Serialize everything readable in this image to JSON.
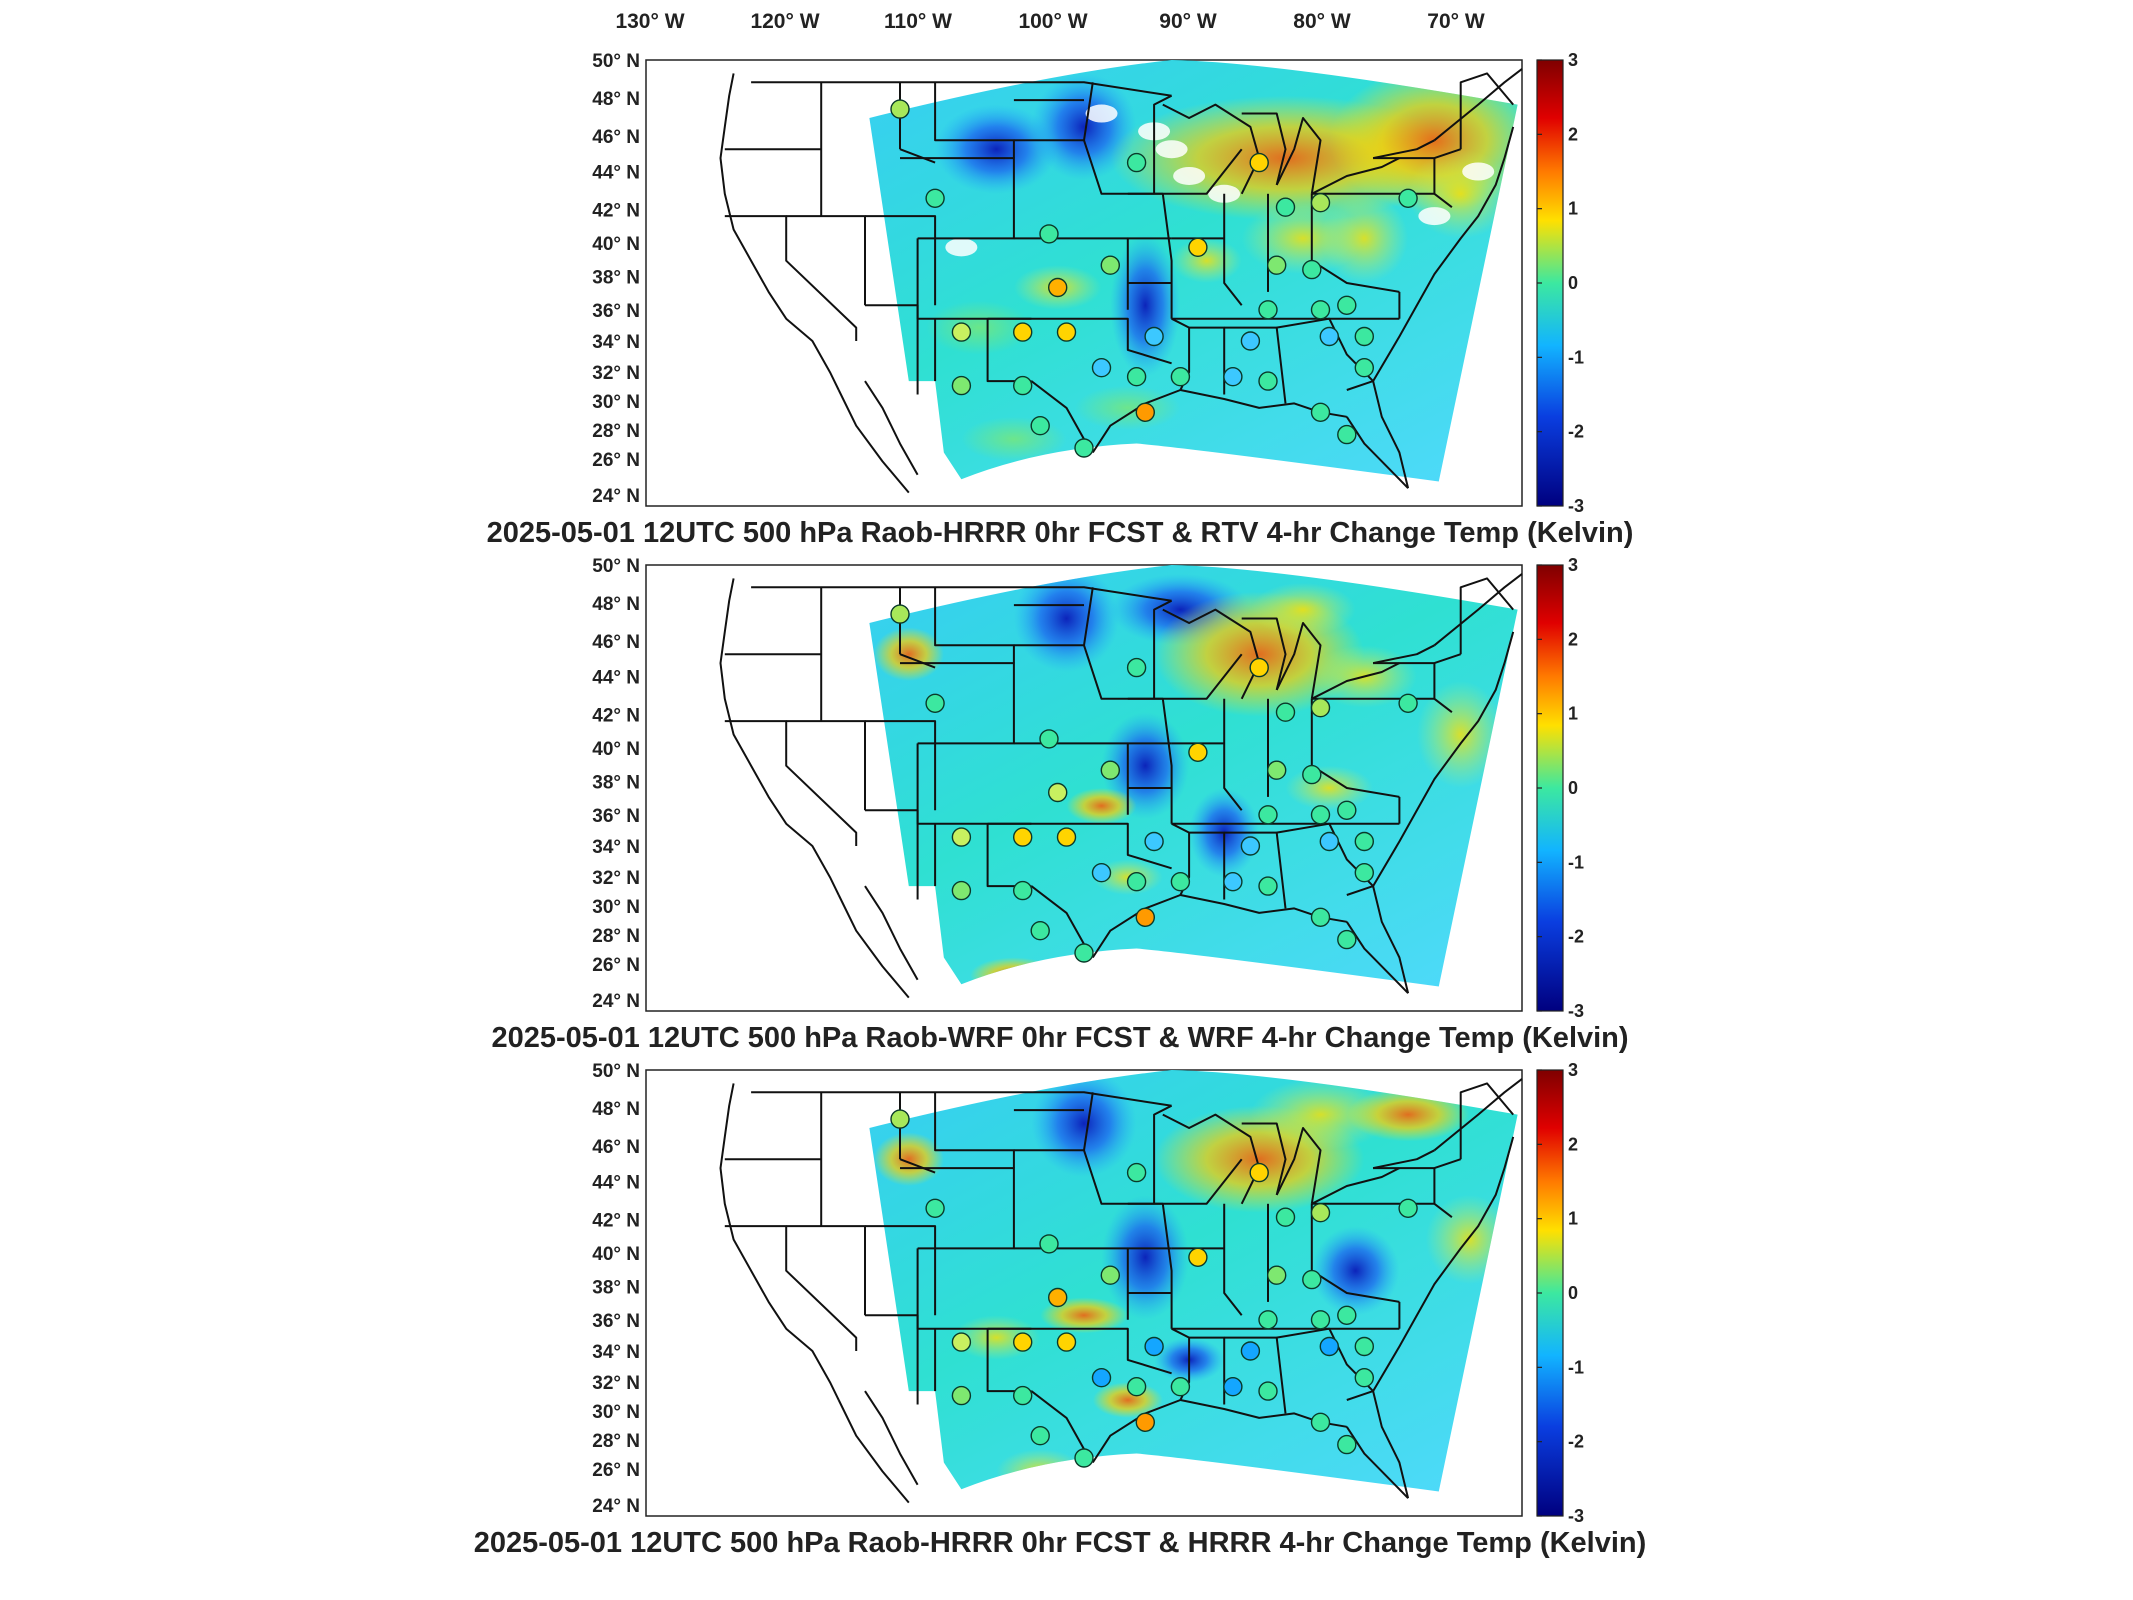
{
  "top_axis": {
    "labels": [
      "130° W",
      "120° W",
      "110° W",
      "100° W",
      "90° W",
      "80° W",
      "70° W"
    ]
  },
  "lat_labels": [
    "50° N",
    "48° N",
    "46° N",
    "44° N",
    "42° N",
    "40° N",
    "38° N",
    "36° N",
    "34° N",
    "32° N",
    "30° N",
    "28° N",
    "26° N",
    "24° N"
  ],
  "colorbar": {
    "ticks": [
      "3",
      "2",
      "1",
      "0",
      "-1",
      "-2",
      "-3"
    ],
    "colors": [
      "#7f0000",
      "#ff2a00",
      "#ffd400",
      "#2ee8a0",
      "#14a6ff",
      "#0a1fd6",
      "#00007f"
    ]
  },
  "panels": [
    {
      "title": "2025-05-01 12UTC 500 hPa Raob-HRRR 0hr FCST & RTV 4-hr Change Temp (Kelvin)"
    },
    {
      "title": "2025-05-01 12UTC 500 hPa Raob-WRF 0hr FCST & WRF 4-hr Change Temp (Kelvin)"
    },
    {
      "title": "2025-05-01 12UTC 500 hPa Raob-HRRR 0hr FCST & HRRR 4-hr Change Temp (Kelvin)"
    }
  ]
}
